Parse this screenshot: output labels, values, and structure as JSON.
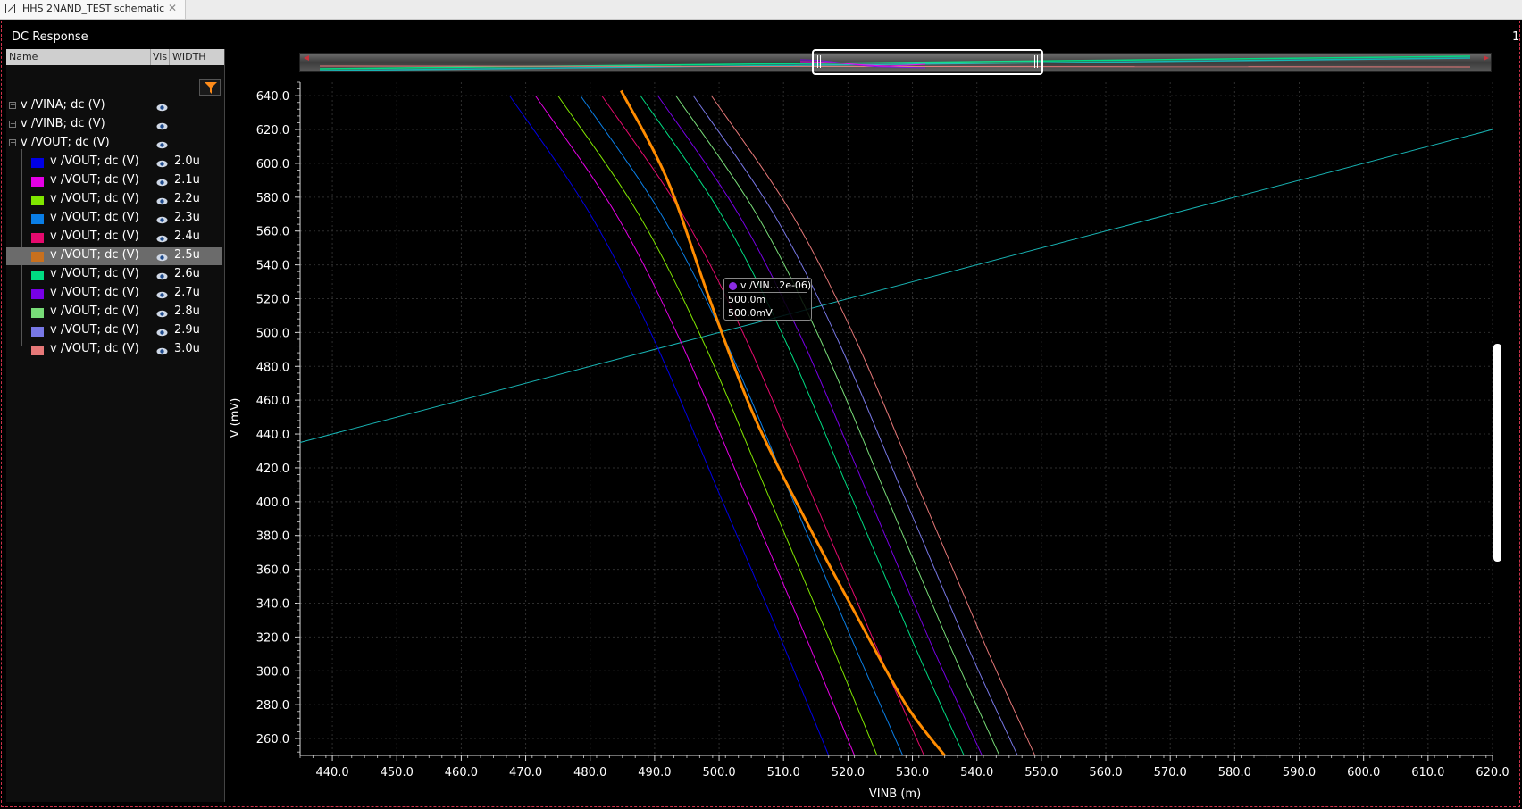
{
  "tab": {
    "title": "HHS 2NAND_TEST schematic",
    "close": "✕"
  },
  "panel_title": "DC Response",
  "right_label": "1",
  "browser": {
    "headers": {
      "name": "Name",
      "vis": "Vis",
      "width": "WIDTH"
    },
    "groups": [
      {
        "label": "v /VINA; dc (V)",
        "expanded": false
      },
      {
        "label": "v /VINB; dc (V)",
        "expanded": false
      },
      {
        "label": "v /VOUT; dc (V)",
        "expanded": true
      }
    ],
    "traces": [
      {
        "label": "v /VOUT; dc (V)",
        "width": "2.0u",
        "color": "#0000e6"
      },
      {
        "label": "v /VOUT; dc (V)",
        "width": "2.1u",
        "color": "#e600e6"
      },
      {
        "label": "v /VOUT; dc (V)",
        "width": "2.2u",
        "color": "#80e600"
      },
      {
        "label": "v /VOUT; dc (V)",
        "width": "2.3u",
        "color": "#0a7ee6"
      },
      {
        "label": "v /VOUT; dc (V)",
        "width": "2.4u",
        "color": "#e60a6e"
      },
      {
        "label": "v /VOUT; dc (V)",
        "width": "2.5u",
        "color": "#c8701e",
        "selected": true
      },
      {
        "label": "v /VOUT; dc (V)",
        "width": "2.6u",
        "color": "#00dc82"
      },
      {
        "label": "v /VOUT; dc (V)",
        "width": "2.7u",
        "color": "#7800e6"
      },
      {
        "label": "v /VOUT; dc (V)",
        "width": "2.8u",
        "color": "#78dc78"
      },
      {
        "label": "v /VOUT; dc (V)",
        "width": "2.9u",
        "color": "#7878e6"
      },
      {
        "label": "v /VOUT; dc (V)",
        "width": "3.0u",
        "color": "#e67878"
      }
    ]
  },
  "tooltip": {
    "name": "v /VIN...2e-06)",
    "x": "500.0m",
    "y": "500.0mV"
  },
  "chart_data": {
    "type": "line",
    "xlabel": "VINB (m)",
    "ylabel": "V (mV)",
    "xlim": [
      435,
      620
    ],
    "ylim": [
      250,
      648
    ],
    "xticks": [
      "440.0",
      "450.0",
      "460.0",
      "470.0",
      "480.0",
      "490.0",
      "500.0",
      "510.0",
      "520.0",
      "530.0",
      "540.0",
      "550.0",
      "560.0",
      "570.0",
      "580.0",
      "590.0",
      "600.0",
      "610.0",
      "620.0"
    ],
    "yticks": [
      "260.0",
      "280.0",
      "300.0",
      "320.0",
      "340.0",
      "360.0",
      "380.0",
      "400.0",
      "420.0",
      "440.0",
      "460.0",
      "480.0",
      "500.0",
      "520.0",
      "540.0",
      "560.0",
      "580.0",
      "600.0",
      "620.0",
      "640.0"
    ],
    "grid": true,
    "vina_line": {
      "color": "#18b4b4",
      "x": [
        435,
        620
      ],
      "y": [
        435,
        620
      ]
    },
    "series": [
      {
        "width": "2.0u",
        "color": "#0000e6",
        "x": [
          467.5,
          480.0,
          490.0,
          500.0,
          510.0,
          517.0
        ],
        "y": [
          640,
          570,
          495,
          405,
          315,
          250
        ]
      },
      {
        "width": "2.1u",
        "color": "#e600e6",
        "x": [
          471.5,
          484.0,
          494.0,
          504.0,
          514.0,
          521.0
        ],
        "y": [
          640,
          570,
          495,
          405,
          315,
          250
        ]
      },
      {
        "width": "2.2u",
        "color": "#80e600",
        "x": [
          475.0,
          487.5,
          497.5,
          507.5,
          517.5,
          524.5
        ],
        "y": [
          640,
          570,
          495,
          405,
          315,
          250
        ]
      },
      {
        "width": "2.3u",
        "color": "#0a7ee6",
        "x": [
          478.5,
          491.0,
          501.0,
          511.0,
          521.0,
          528.5
        ],
        "y": [
          640,
          570,
          495,
          405,
          315,
          250
        ]
      },
      {
        "width": "2.4u",
        "color": "#e60a6e",
        "x": [
          481.8,
          494.3,
          504.3,
          514.3,
          524.3,
          531.8
        ],
        "y": [
          640,
          570,
          495,
          405,
          315,
          250
        ]
      },
      {
        "width": "2.5u",
        "color": "#ff8c00",
        "highlight": true,
        "x": [
          484.8,
          492.0,
          498.5,
          505.5,
          514.0,
          521.0,
          529.0,
          535.0
        ],
        "y": [
          643,
          590,
          520,
          450,
          385,
          335,
          280,
          250
        ]
      },
      {
        "width": "2.6u",
        "color": "#00dc82",
        "x": [
          487.8,
          500.3,
          510.3,
          520.3,
          530.3,
          538.0
        ],
        "y": [
          640,
          570,
          495,
          405,
          315,
          250
        ]
      },
      {
        "width": "2.7u",
        "color": "#7800e6",
        "x": [
          490.5,
          503.0,
          513.0,
          523.0,
          533.0,
          540.8
        ],
        "y": [
          640,
          570,
          495,
          405,
          315,
          250
        ]
      },
      {
        "width": "2.8u",
        "color": "#78dc78",
        "x": [
          493.3,
          505.8,
          515.8,
          525.8,
          535.8,
          543.5
        ],
        "y": [
          640,
          570,
          495,
          405,
          315,
          250
        ]
      },
      {
        "width": "2.9u",
        "color": "#7878e6",
        "x": [
          496.0,
          508.5,
          518.5,
          528.5,
          538.5,
          546.3
        ],
        "y": [
          640,
          570,
          495,
          405,
          315,
          250
        ]
      },
      {
        "width": "3.0u",
        "color": "#e67878",
        "x": [
          498.8,
          511.3,
          521.3,
          531.3,
          541.3,
          549.0
        ],
        "y": [
          640,
          570,
          495,
          405,
          315,
          250
        ]
      }
    ]
  }
}
